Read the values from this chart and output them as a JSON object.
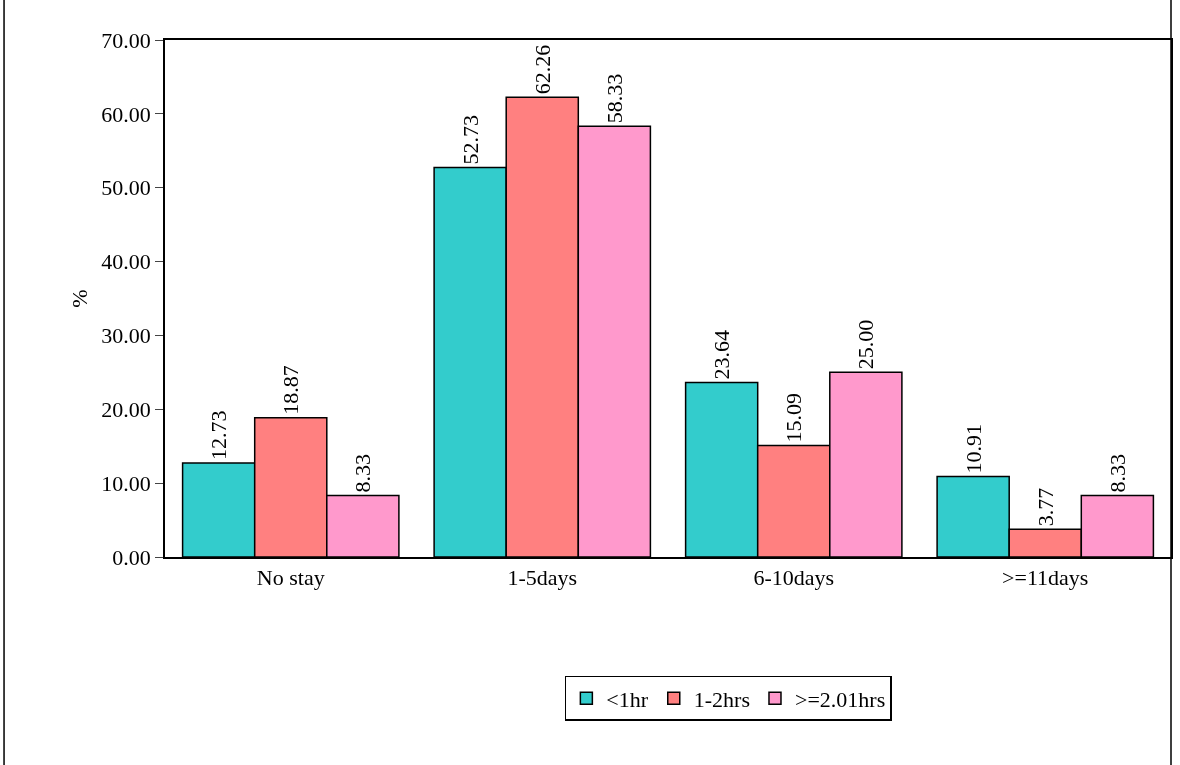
{
  "chart_data": {
    "type": "bar",
    "ylabel": "%",
    "categories": [
      "No stay",
      "1-5days",
      "6-10days",
      ">=11days"
    ],
    "series": [
      {
        "name": "<1hr",
        "color": "#33cccc",
        "values": [
          12.73,
          52.73,
          23.64,
          10.91
        ]
      },
      {
        "name": "1-2hrs",
        "color": "#ff8080",
        "values": [
          18.87,
          62.26,
          15.09,
          3.77
        ]
      },
      {
        "name": ">=2.01hrs",
        "color": "#ff99cc",
        "values": [
          8.33,
          58.33,
          25.0,
          8.33
        ]
      }
    ],
    "value_labels": [
      [
        "12.73",
        "52.73",
        "23.64",
        "10.91"
      ],
      [
        "18.87",
        "62.26",
        "15.09",
        "3.77"
      ],
      [
        "8.33",
        "58.33",
        "25.00",
        "8.33"
      ]
    ],
    "ylim": [
      0,
      70
    ],
    "yticks": [
      {
        "value": 0,
        "label": "0.00"
      },
      {
        "value": 10,
        "label": "10.00"
      },
      {
        "value": 20,
        "label": "20.00"
      },
      {
        "value": 30,
        "label": "30.00"
      },
      {
        "value": 40,
        "label": "40.00"
      },
      {
        "value": 50,
        "label": "50.00"
      },
      {
        "value": 60,
        "label": "60.00"
      },
      {
        "value": 70,
        "label": "70.00"
      }
    ],
    "grid": false,
    "legend": "bottom"
  }
}
